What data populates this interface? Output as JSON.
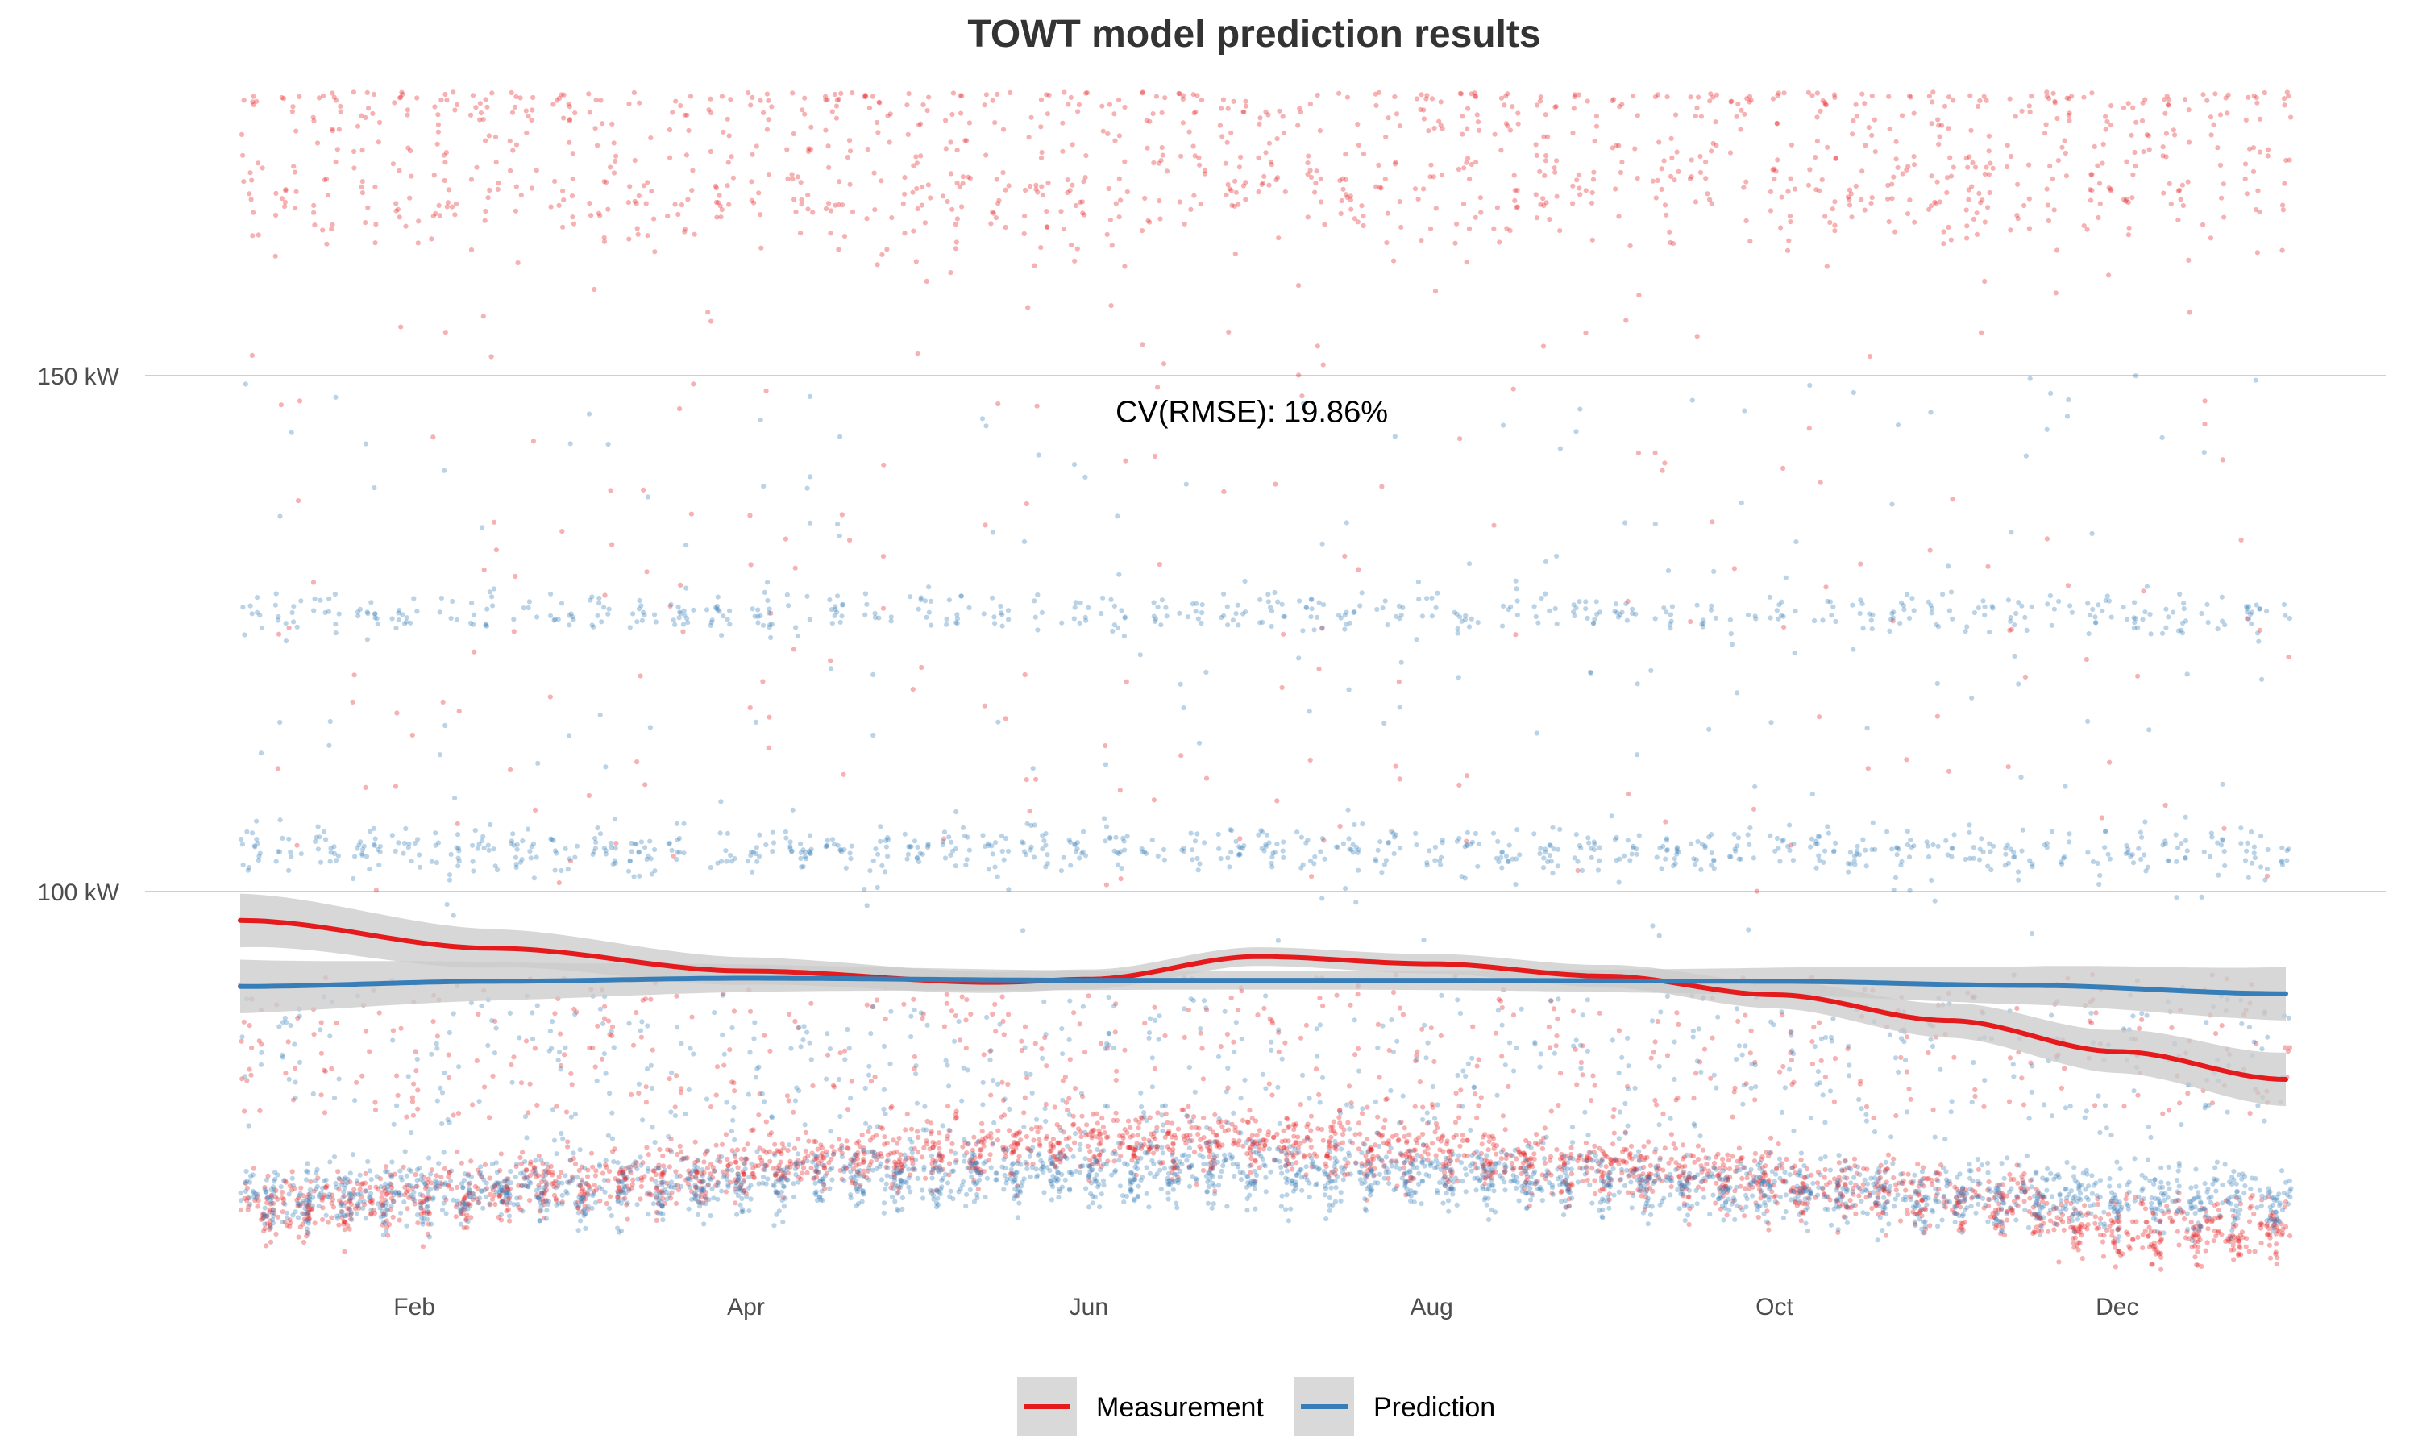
{
  "chart_data": {
    "type": "scatter",
    "title": "TOWT model prediction results",
    "xlabel": "",
    "ylabel": "",
    "x_axis": {
      "type": "date",
      "range": [
        "2019-01-01",
        "2019-12-31"
      ],
      "ticks": [
        {
          "label": "Feb",
          "date": "2019-02-01"
        },
        {
          "label": "Apr",
          "date": "2019-04-01"
        },
        {
          "label": "Jun",
          "date": "2019-06-01"
        },
        {
          "label": "Aug",
          "date": "2019-08-01"
        },
        {
          "label": "Oct",
          "date": "2019-10-01"
        },
        {
          "label": "Dec",
          "date": "2019-12-01"
        }
      ]
    },
    "y_axis": {
      "range": [
        62,
        178
      ],
      "unit": "kW",
      "ticks": [
        {
          "label": "100 kW",
          "value": 100
        },
        {
          "label": "150 kW",
          "value": 150
        }
      ]
    },
    "grid": "horizontal major only",
    "legend_position": "bottom",
    "annotation": {
      "text": "CV(RMSE): 19.86%",
      "date": "2019-06-30",
      "value": 145.5
    },
    "series": [
      {
        "name": "Measurement",
        "color": "#e41a1c",
        "weekday_levels": [
          165,
          176
        ],
        "night_level": 72,
        "smooth_trend": [
          {
            "date": "2019-01-01",
            "value": 97.2
          },
          {
            "date": "2019-02-15",
            "value": 94.5
          },
          {
            "date": "2019-04-01",
            "value": 92.3
          },
          {
            "date": "2019-05-15",
            "value": 91.2
          },
          {
            "date": "2019-06-01",
            "value": 91.5
          },
          {
            "date": "2019-07-01",
            "value": 93.7
          },
          {
            "date": "2019-08-01",
            "value": 93.0
          },
          {
            "date": "2019-09-01",
            "value": 91.8
          },
          {
            "date": "2019-10-01",
            "value": 90.0
          },
          {
            "date": "2019-11-01",
            "value": 87.5
          },
          {
            "date": "2019-12-01",
            "value": 84.5
          },
          {
            "date": "2019-12-31",
            "value": 81.8
          }
        ]
      },
      {
        "name": "Prediction",
        "color": "#377eb8",
        "weekday_levels": [
          104,
          127
        ],
        "night_level": 71,
        "smooth_trend": [
          {
            "date": "2019-01-01",
            "value": 90.8
          },
          {
            "date": "2019-02-15",
            "value": 91.3
          },
          {
            "date": "2019-04-01",
            "value": 91.6
          },
          {
            "date": "2019-06-01",
            "value": 91.4
          },
          {
            "date": "2019-08-01",
            "value": 91.4
          },
          {
            "date": "2019-10-01",
            "value": 91.3
          },
          {
            "date": "2019-11-15",
            "value": 90.9
          },
          {
            "date": "2019-12-31",
            "value": 90.1
          }
        ]
      }
    ],
    "confidence_band": {
      "color": "#cccccc",
      "halfwidth_edge": 2.6,
      "halfwidth_mid": 0.9
    }
  },
  "legend": {
    "items": [
      {
        "label": "Measurement",
        "color": "#e41a1c"
      },
      {
        "label": "Prediction",
        "color": "#377eb8"
      }
    ]
  }
}
